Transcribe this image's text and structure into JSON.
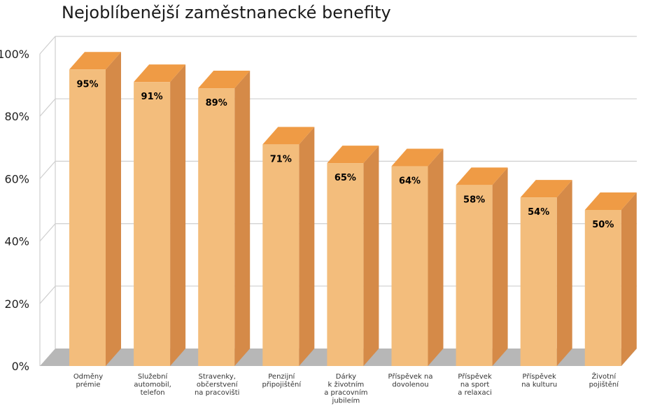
{
  "chart_data": {
    "type": "bar",
    "title": "Nejoblíbenější zaměstnanecké benefity",
    "xlabel": "",
    "ylabel": "",
    "ylim": [
      0,
      100
    ],
    "yticks": [
      "0%",
      "20%",
      "40%",
      "60%",
      "80%",
      "100%"
    ],
    "grid": true,
    "categories": [
      [
        "Odměny",
        "prémie"
      ],
      [
        "Služební",
        "automobil,",
        "telefon"
      ],
      [
        "Stravenky,",
        "občerstvení",
        "na pracovišti"
      ],
      [
        "Penzijní",
        "připojištění"
      ],
      [
        "Dárky",
        "k životním",
        "a pracovním",
        "jubileím"
      ],
      [
        "Příspěvek na",
        "dovolenou"
      ],
      [
        "Příspěvek",
        "na sport",
        "a relaxaci"
      ],
      [
        "Příspěvek",
        "na kulturu"
      ],
      [
        "Životní",
        "pojištění"
      ]
    ],
    "values": [
      95,
      91,
      89,
      71,
      65,
      64,
      58,
      54,
      50
    ],
    "value_labels": [
      "95%",
      "91%",
      "89%",
      "71%",
      "65%",
      "64%",
      "58%",
      "54%",
      "50%"
    ],
    "colors": {
      "front": "#f3bd7c",
      "side": "#d58a48",
      "top": "#ef9b45",
      "floor": "#b7b7b7",
      "grid": "#cfcfcf"
    }
  }
}
